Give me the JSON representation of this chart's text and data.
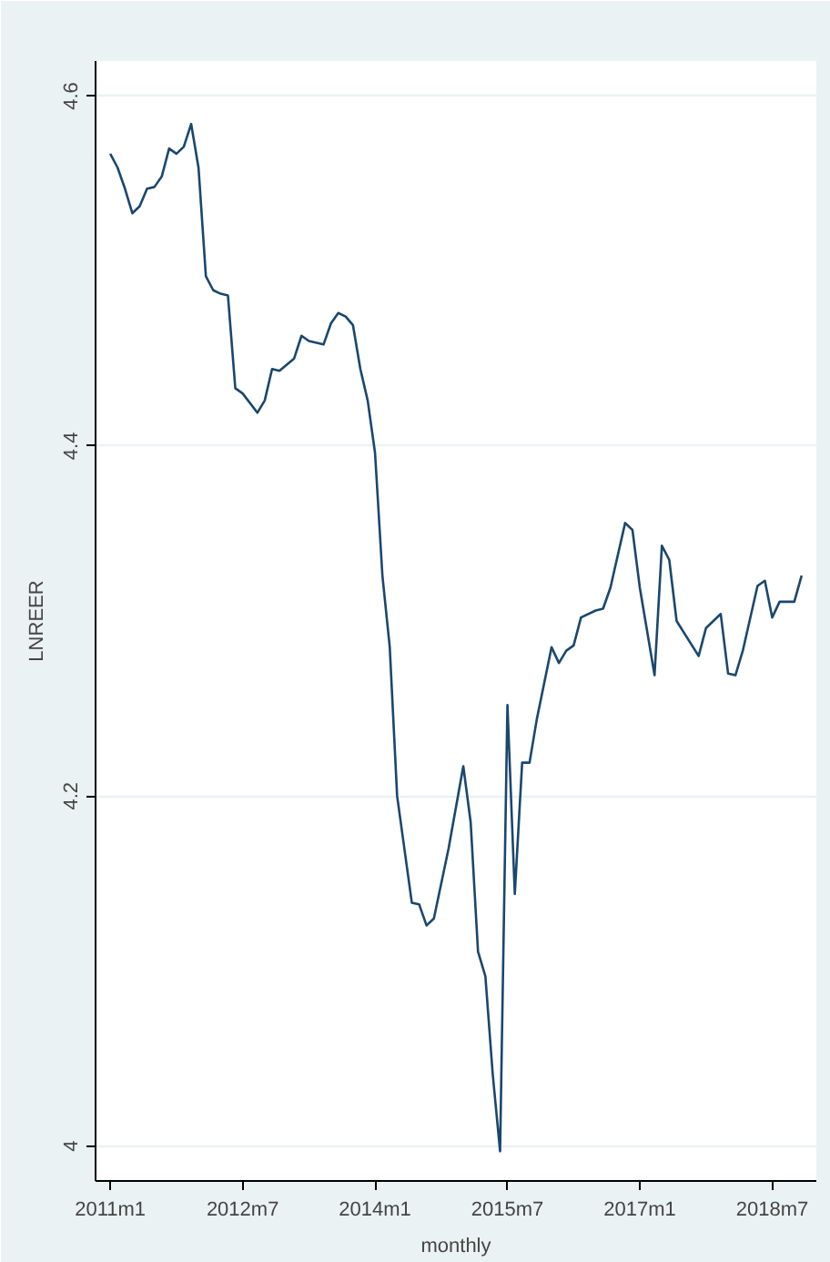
{
  "chart_data": {
    "type": "line",
    "xlabel": "monthly",
    "ylabel": "LNREER",
    "x": [
      "2011-01",
      "2011-02",
      "2011-03",
      "2011-04",
      "2011-05",
      "2011-06",
      "2011-07",
      "2011-08",
      "2011-09",
      "2011-10",
      "2011-11",
      "2011-12",
      "2012-01",
      "2012-02",
      "2012-03",
      "2012-04",
      "2012-05",
      "2012-06",
      "2012-07",
      "2012-09",
      "2012-10",
      "2012-11",
      "2012-12",
      "2013-02",
      "2013-03",
      "2013-04",
      "2013-06",
      "2013-07",
      "2013-08",
      "2013-09",
      "2013-10",
      "2013-11",
      "2013-12",
      "2014-01",
      "2014-02",
      "2014-03",
      "2014-04",
      "2014-06",
      "2014-07",
      "2014-08",
      "2014-09",
      "2014-11",
      "2015-01",
      "2015-02",
      "2015-03",
      "2015-04",
      "2015-05",
      "2015-06",
      "2015-07",
      "2015-08",
      "2015-09",
      "2015-10",
      "2015-11",
      "2016-01",
      "2016-02",
      "2016-03",
      "2016-04",
      "2016-05",
      "2016-07",
      "2016-08",
      "2016-09",
      "2016-11",
      "2016-12",
      "2017-01",
      "2017-03",
      "2017-04",
      "2017-05",
      "2017-06",
      "2017-09",
      "2017-10",
      "2017-12",
      "2018-01",
      "2018-02",
      "2018-03",
      "2018-05",
      "2018-06",
      "2018-07",
      "2018-08",
      "2018-10",
      "2018-11"
    ],
    "series": [
      {
        "color": "#1a476f",
        "values": [
          4.567,
          4.559,
          4.547,
          4.533,
          4.537,
          4.547,
          4.548,
          4.554,
          4.57,
          4.567,
          4.571,
          4.584,
          4.559,
          4.497,
          4.489,
          4.487,
          4.486,
          4.433,
          4.43,
          4.419,
          4.426,
          4.444,
          4.443,
          4.45,
          4.463,
          4.46,
          4.458,
          4.47,
          4.476,
          4.474,
          4.469,
          4.444,
          4.426,
          4.396,
          4.326,
          4.285,
          4.2,
          4.139,
          4.138,
          4.126,
          4.13,
          4.17,
          4.217,
          4.185,
          4.111,
          4.097,
          4.041,
          3.997,
          4.252,
          4.144,
          4.219,
          4.219,
          4.244,
          4.285,
          4.276,
          4.283,
          4.286,
          4.302,
          4.306,
          4.307,
          4.319,
          4.356,
          4.352,
          4.319,
          4.269,
          4.343,
          4.335,
          4.3,
          4.28,
          4.296,
          4.304,
          4.27,
          4.269,
          4.283,
          4.32,
          4.323,
          4.302,
          4.311,
          4.311,
          4.326
        ]
      }
    ],
    "xlim": [
      "2010-11",
      "2019-01"
    ],
    "xticks": [
      {
        "value": "2011-01",
        "label": "2011m1"
      },
      {
        "value": "2012-07",
        "label": "2012m7"
      },
      {
        "value": "2014-01",
        "label": "2014m1"
      },
      {
        "value": "2015-07",
        "label": "2015m7"
      },
      {
        "value": "2017-01",
        "label": "2017m1"
      },
      {
        "value": "2018-07",
        "label": "2018m7"
      }
    ],
    "ylim": [
      3.98,
      4.62
    ],
    "yticks": [
      4,
      4.2,
      4.4,
      4.6
    ],
    "grid": "y",
    "marker": "none",
    "line_style": "solid"
  }
}
